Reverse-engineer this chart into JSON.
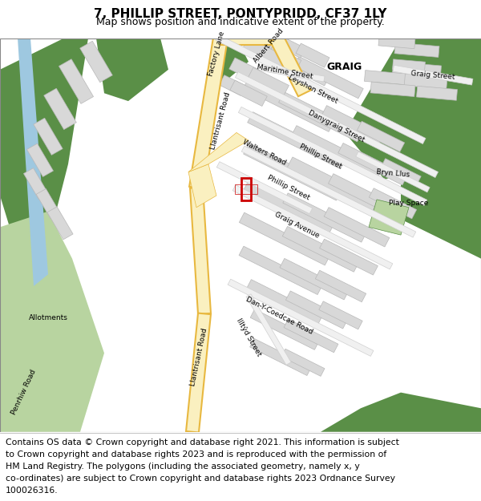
{
  "title": "7, PHILLIP STREET, PONTYPRIDD, CF37 1LY",
  "subtitle": "Map shows position and indicative extent of the property.",
  "footer_line1": "Contains OS data © Crown copyright and database right 2021. This information is subject",
  "footer_line2": "to Crown copyright and database rights 2023 and is reproduced with the permission of",
  "footer_line3": "HM Land Registry. The polygons (including the associated geometry, namely x, y",
  "footer_line4": "co-ordinates) are subject to Crown copyright and database rights 2023 Ordnance Survey",
  "footer_line5": "100026316.",
  "map_bg": "#ffffff",
  "road_yellow_fill": "#faf0c0",
  "road_yellow_border": "#e8b840",
  "road_gray_fill": "#e8e8e8",
  "road_gray_border": "#c0c0c0",
  "building_fill": "#d8d8d8",
  "building_border": "#b8b8b8",
  "green_dark": "#5a8f47",
  "green_light": "#b8d4a0",
  "blue_canal": "#9ec8e0",
  "red_property": "#cc0000",
  "title_fontsize": 11,
  "subtitle_fontsize": 9,
  "footer_fontsize": 7.8,
  "label_fontsize": 6.5
}
